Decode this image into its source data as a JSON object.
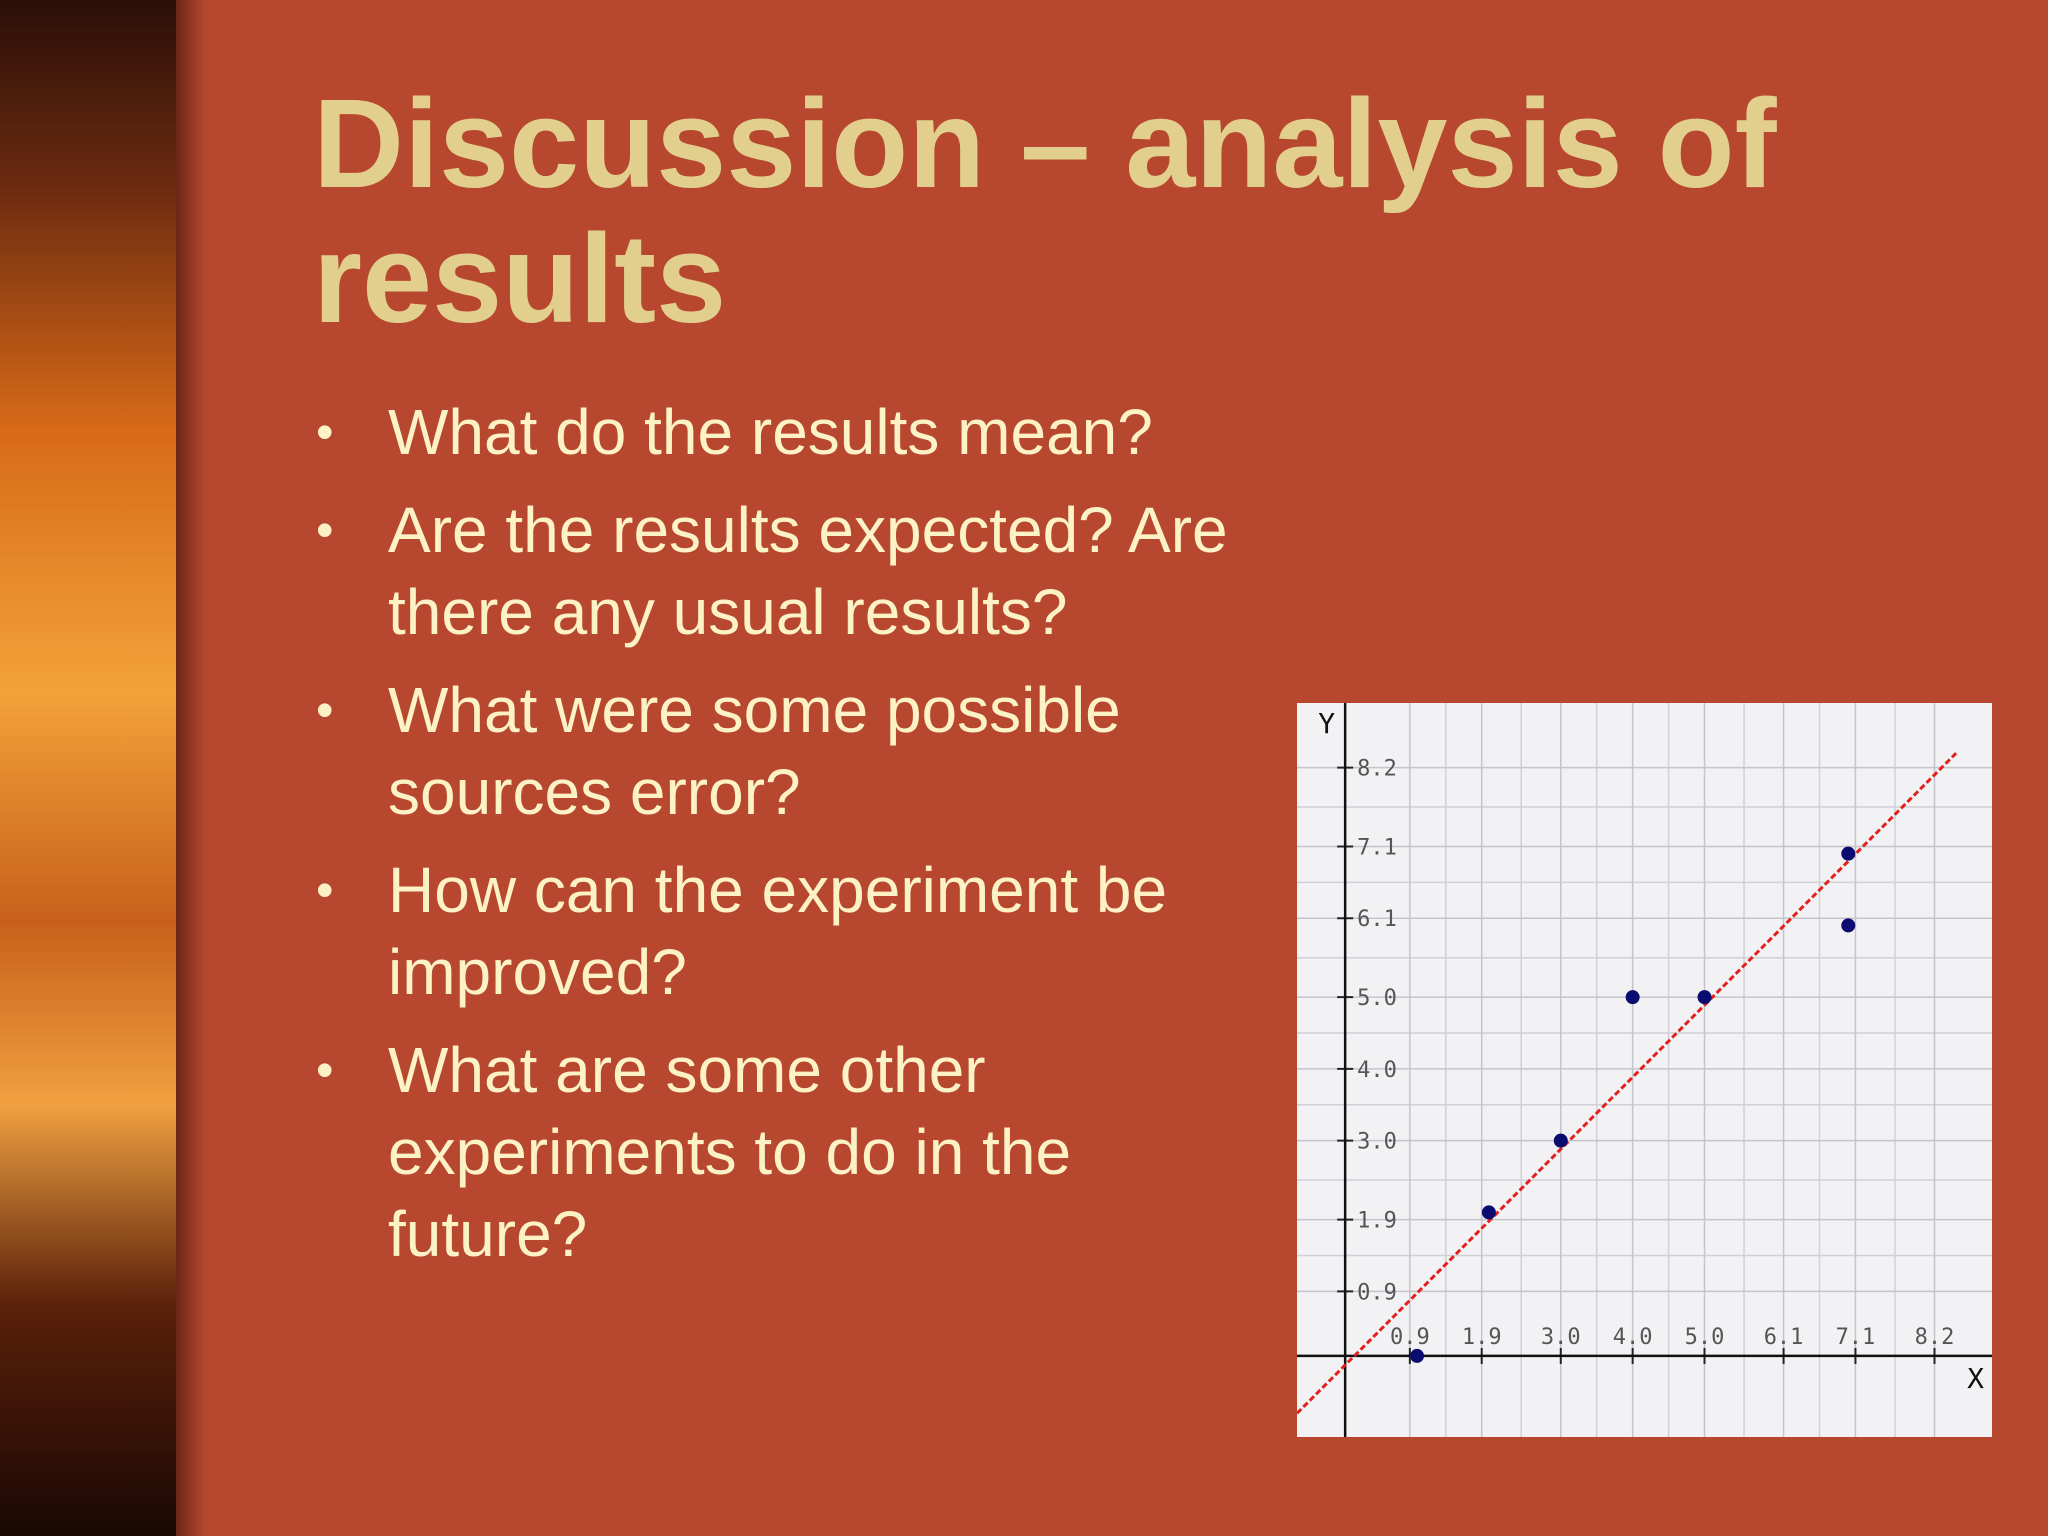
{
  "slide": {
    "title": "Discussion – analysis of results",
    "bullets": [
      [
        "What do the results mean?"
      ],
      [
        "Are the results expected? Are",
        "there any usual results?"
      ],
      [
        "What were some possible",
        "sources error?"
      ],
      [
        "How can the experiment be",
        "improved?"
      ],
      [
        "What are some other",
        "experiments to do in the",
        "future?"
      ]
    ]
  },
  "chart_data": {
    "type": "scatter",
    "x_label": "X",
    "y_label": "Y",
    "xlim": [
      -0.67,
      9.0
    ],
    "ylim": [
      -1.13,
      9.1
    ],
    "xticks": [
      0.9,
      1.9,
      {
        "value": 3,
        "label": "3.0"
      },
      {
        "value": 4,
        "label": "4.0"
      },
      {
        "value": 5,
        "label": "5.0"
      },
      6.1,
      7.1,
      8.2
    ],
    "yticks": [
      0.9,
      1.9,
      {
        "value": 3,
        "label": "3.0"
      },
      {
        "value": 4,
        "label": "4.0"
      },
      {
        "value": 5,
        "label": "5.0"
      },
      6.1,
      7.1,
      8.2
    ],
    "grid": true,
    "series": [
      {
        "color": "#0b0b70",
        "x": [
          1,
          2,
          3,
          4,
          5,
          7,
          7
        ],
        "values": [
          0,
          2,
          3,
          5,
          5,
          7,
          6
        ]
      }
    ],
    "trend_line": {
      "color": "#e3201c",
      "x": [
        -0.67,
        8.5
      ],
      "values": [
        -0.8,
        8.4
      ]
    }
  }
}
